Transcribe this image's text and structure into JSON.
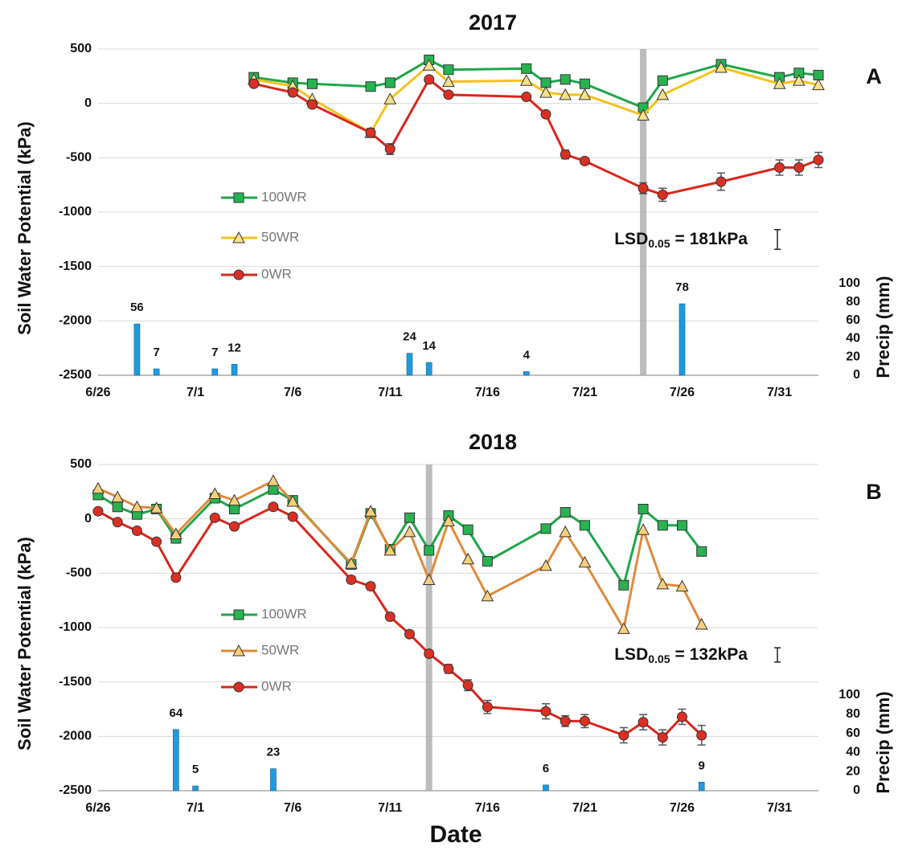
{
  "chart_data": [
    {
      "type": "line",
      "title": "2017",
      "panel_label": "A",
      "ylabel": "Soil Water Potential (kPa)",
      "y2label": "Precip (mm)",
      "xlim": [
        "6/26",
        "8/2"
      ],
      "xticks": [
        "6/26",
        "7/1",
        "7/6",
        "7/11",
        "7/16",
        "7/21",
        "7/26",
        "7/31"
      ],
      "ylim": [
        -2500,
        500
      ],
      "yticks": [
        -2500,
        -2000,
        -1500,
        -1000,
        -500,
        0,
        500
      ],
      "grid": true,
      "y2lim": [
        0,
        356
      ],
      "y2ticks": [
        0,
        20,
        40,
        60,
        80,
        100
      ],
      "highlight_x": "7/24",
      "x": [
        "7/4",
        "7/6",
        "7/7",
        "7/10",
        "7/11",
        "7/13",
        "7/14",
        "7/18",
        "7/19",
        "7/20",
        "7/21",
        "7/24",
        "7/25",
        "7/28",
        "7/31",
        "8/1",
        "8/2"
      ],
      "series": [
        {
          "name": "100WR",
          "color": "#1fa64a",
          "marker": "square",
          "marker_color": "#27b350",
          "values": [
            240,
            190,
            180,
            155,
            190,
            400,
            310,
            320,
            190,
            220,
            180,
            -40,
            210,
            360,
            240,
            280,
            260
          ]
        },
        {
          "name": "50WR",
          "color": "#f4c21a",
          "marker": "triangle",
          "marker_color": "#f7e08a",
          "values": [
            220,
            160,
            40,
            -270,
            40,
            350,
            200,
            210,
            100,
            80,
            80,
            -110,
            80,
            330,
            180,
            210,
            170
          ]
        },
        {
          "name": "0WR",
          "color": "#d9261c",
          "marker": "circle",
          "marker_color": "#dc2f24",
          "values": [
            180,
            100,
            -10,
            -270,
            -420,
            220,
            80,
            60,
            -100,
            -470,
            -530,
            -780,
            -840,
            -720,
            -590,
            -590,
            -520
          ],
          "errors": [
            20,
            20,
            20,
            40,
            50,
            20,
            20,
            20,
            20,
            40,
            30,
            50,
            60,
            80,
            70,
            70,
            70
          ]
        }
      ],
      "precip": {
        "axis": "y2",
        "color": "#1e9be0",
        "x": [
          "6/28",
          "6/29",
          "7/2",
          "7/3",
          "7/12",
          "7/13",
          "7/18",
          "7/26"
        ],
        "values": [
          56,
          7,
          7,
          12,
          24,
          14,
          4,
          78
        ]
      },
      "lsd": {
        "label": "LSD",
        "subscript": "0.05",
        "text": "= 181kPa",
        "value": 181
      }
    },
    {
      "type": "line",
      "title": "2018",
      "panel_label": "B",
      "ylabel": "Soil Water Potential (kPa)",
      "y2label": "Precip (mm)",
      "xlabel": "Date",
      "xlim": [
        "6/26",
        "8/2"
      ],
      "xticks": [
        "6/26",
        "7/1",
        "7/6",
        "7/11",
        "7/16",
        "7/21",
        "7/26",
        "7/31"
      ],
      "ylim": [
        -2500,
        500
      ],
      "yticks": [
        -2500,
        -2000,
        -1500,
        -1000,
        -500,
        0,
        500
      ],
      "grid": true,
      "y2lim": [
        0,
        341
      ],
      "y2ticks": [
        0,
        20,
        40,
        60,
        80,
        100
      ],
      "highlight_x": "7/13",
      "x": [
        "6/26",
        "6/27",
        "6/28",
        "6/29",
        "6/30",
        "7/2",
        "7/3",
        "7/5",
        "7/6",
        "7/9",
        "7/10",
        "7/11",
        "7/12",
        "7/13",
        "7/14",
        "7/15",
        "7/16",
        "7/19",
        "7/20",
        "7/21",
        "7/23",
        "7/24",
        "7/25",
        "7/26",
        "7/27"
      ],
      "series": [
        {
          "name": "100WR",
          "color": "#1fa64a",
          "marker": "square",
          "marker_color": "#27b350",
          "values": [
            220,
            110,
            40,
            90,
            -180,
            190,
            90,
            270,
            170,
            -420,
            50,
            -280,
            10,
            -290,
            30,
            -100,
            -390,
            -90,
            60,
            -60,
            -610,
            90,
            -60,
            -60,
            -300
          ]
        },
        {
          "name": "50WR",
          "color": "#e08a3a",
          "marker": "triangle",
          "marker_color": "#f7cf7a",
          "values": [
            280,
            200,
            110,
            100,
            -140,
            230,
            170,
            350,
            160,
            -410,
            70,
            -290,
            -120,
            -560,
            -20,
            -370,
            -710,
            -430,
            -120,
            -400,
            -1010,
            -100,
            -600,
            -620,
            -970
          ]
        },
        {
          "name": "0WR",
          "color": "#d9261c",
          "marker": "circle",
          "marker_color": "#dc2f24",
          "values": [
            70,
            -30,
            -110,
            -210,
            -540,
            10,
            -70,
            110,
            20,
            -560,
            -620,
            -900,
            -1060,
            -1240,
            -1380,
            -1530,
            -1730,
            -1770,
            -1860,
            -1860,
            -1990,
            -1870,
            -2010,
            -1820,
            -1990
          ],
          "errors": [
            20,
            20,
            20,
            20,
            30,
            20,
            20,
            20,
            20,
            30,
            30,
            30,
            30,
            30,
            40,
            50,
            60,
            70,
            50,
            60,
            70,
            70,
            70,
            70,
            90
          ]
        }
      ],
      "precip": {
        "axis": "y2",
        "color": "#1e9be0",
        "x": [
          "6/30",
          "7/1",
          "7/5",
          "7/19",
          "7/27"
        ],
        "values": [
          64,
          5,
          23,
          6,
          9
        ]
      },
      "lsd": {
        "label": "LSD",
        "subscript": "0.05",
        "text": "= 132kPa",
        "value": 132
      }
    }
  ]
}
